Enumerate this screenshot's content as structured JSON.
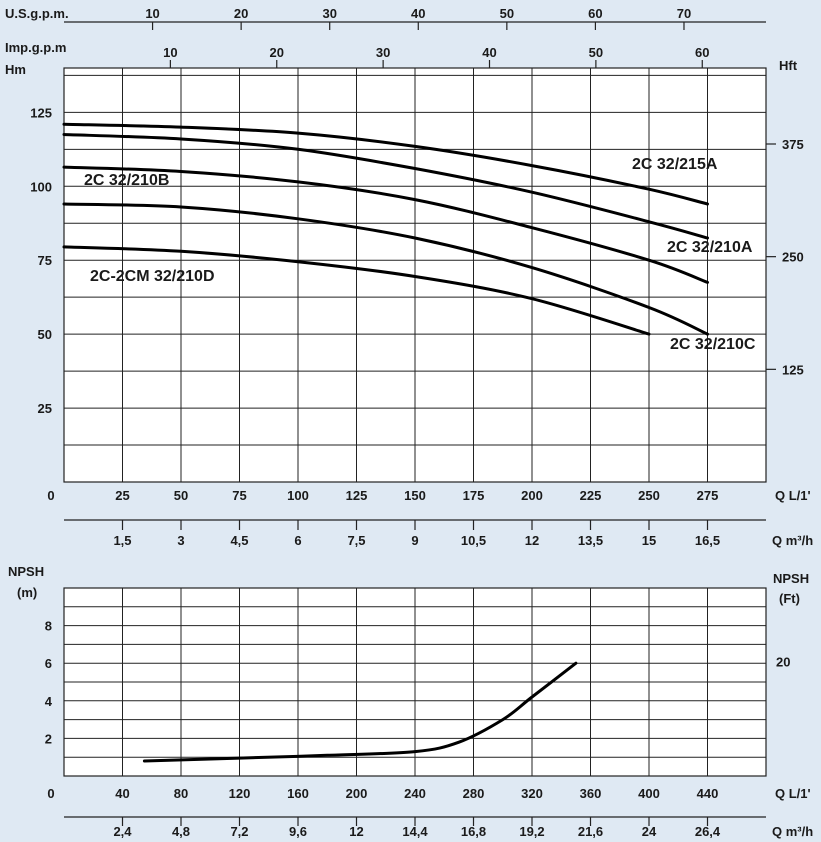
{
  "colors": {
    "background": "#dfe9f3",
    "plot": "#ffffff",
    "line": "#000000"
  },
  "chart_data": [
    {
      "type": "line",
      "name": "head",
      "xlabel": "Q L/1'",
      "ylabel": "Hm",
      "ylabel_right": "Hft",
      "x_ticks": [
        0,
        25,
        50,
        75,
        100,
        125,
        150,
        175,
        200,
        225,
        250,
        275
      ],
      "x_tick_labels": [
        "0",
        "25",
        "50",
        "75",
        "100",
        "125",
        "150",
        "175",
        "200",
        "225",
        "250",
        "275"
      ],
      "xlim": [
        0,
        300
      ],
      "y_ticks": [
        25,
        50,
        75,
        100,
        125
      ],
      "y_tick_labels": [
        "25",
        "50",
        "75",
        "100",
        "125"
      ],
      "ylim": [
        0,
        140
      ],
      "y_right_ticks": [
        125,
        250,
        375
      ],
      "y_right_tick_labels": [
        "125",
        "250",
        "375"
      ],
      "secondary_x_axes": [
        {
          "label": "Q m³/h",
          "position": "bottom",
          "ticks": [
            1.5,
            3,
            4.5,
            6,
            7.5,
            9,
            10.5,
            12,
            13.5,
            15,
            16.5
          ],
          "tick_labels": [
            "1,5",
            "3",
            "4,5",
            "6",
            "7,5",
            "9",
            "10,5",
            "12",
            "13,5",
            "15",
            "16,5"
          ],
          "factor": 16.6667
        },
        {
          "label": "U.S.g.p.m.",
          "position": "top",
          "ticks": [
            10,
            20,
            30,
            40,
            50,
            60,
            70
          ],
          "tick_labels": [
            "10",
            "20",
            "30",
            "40",
            "50",
            "60",
            "70"
          ],
          "factor": 3.785
        },
        {
          "label": "Imp.g.p.m",
          "position": "top",
          "ticks": [
            10,
            20,
            30,
            40,
            50,
            60
          ],
          "tick_labels": [
            "10",
            "20",
            "30",
            "40",
            "50",
            "60"
          ],
          "factor": 4.546
        }
      ],
      "series": [
        {
          "name": "2C 32/215A",
          "x": [
            0,
            50,
            100,
            150,
            200,
            250,
            275
          ],
          "y": [
            121,
            120,
            118,
            113.5,
            107,
            99,
            94
          ]
        },
        {
          "name": "2C 32/210A",
          "x": [
            0,
            50,
            100,
            150,
            200,
            250,
            275
          ],
          "y": [
            117.5,
            116,
            112.5,
            106,
            98,
            88,
            82.5
          ]
        },
        {
          "name": "2C 32/210B",
          "x": [
            0,
            50,
            100,
            150,
            200,
            250,
            275
          ],
          "y": [
            106.5,
            105,
            101.5,
            95.5,
            86,
            75,
            67.5
          ]
        },
        {
          "name": "2C 32/210C",
          "x": [
            0,
            50,
            100,
            150,
            200,
            250,
            275
          ],
          "y": [
            94,
            93,
            89,
            82.5,
            72.5,
            59,
            50
          ]
        },
        {
          "name": "2C-2CM 32/210D",
          "x": [
            0,
            50,
            100,
            150,
            200,
            250
          ],
          "y": [
            79.5,
            78,
            74.5,
            69.5,
            62,
            50
          ]
        }
      ]
    },
    {
      "type": "line",
      "name": "npsh",
      "ylabel": "NPSH",
      "ylabel_unit": "(m)",
      "ylabel_right": "NPSH",
      "ylabel_right_unit": "(Ft)",
      "xlabel": "Q L/1'",
      "x_ticks": [
        0,
        40,
        80,
        120,
        160,
        200,
        240,
        280,
        320,
        360,
        400,
        440
      ],
      "x_tick_labels": [
        "0",
        "40",
        "80",
        "120",
        "160",
        "200",
        "240",
        "280",
        "320",
        "360",
        "400",
        "440"
      ],
      "xlim": [
        0,
        480
      ],
      "y_ticks": [
        2,
        4,
        6,
        8
      ],
      "y_tick_labels": [
        "2",
        "4",
        "6",
        "8"
      ],
      "ylim": [
        0,
        10
      ],
      "y_right_ticks": [
        20
      ],
      "y_right_tick_labels": [
        "20"
      ],
      "secondary_x_axes": [
        {
          "label": "Q m³/h",
          "position": "bottom",
          "ticks": [
            2.4,
            4.8,
            7.2,
            9.6,
            12,
            14.4,
            16.8,
            19.2,
            21.6,
            24,
            26.4
          ],
          "tick_labels": [
            "2,4",
            "4,8",
            "7,2",
            "9,6",
            "12",
            "14,4",
            "16,8",
            "19,2",
            "21,6",
            "24",
            "26,4"
          ],
          "factor": 16.6667
        }
      ],
      "series": [
        {
          "x": [
            55,
            120,
            180,
            240,
            270,
            300,
            320,
            350
          ],
          "y": [
            0.8,
            0.95,
            1.1,
            1.3,
            1.8,
            3,
            4.2,
            6
          ]
        }
      ]
    }
  ]
}
